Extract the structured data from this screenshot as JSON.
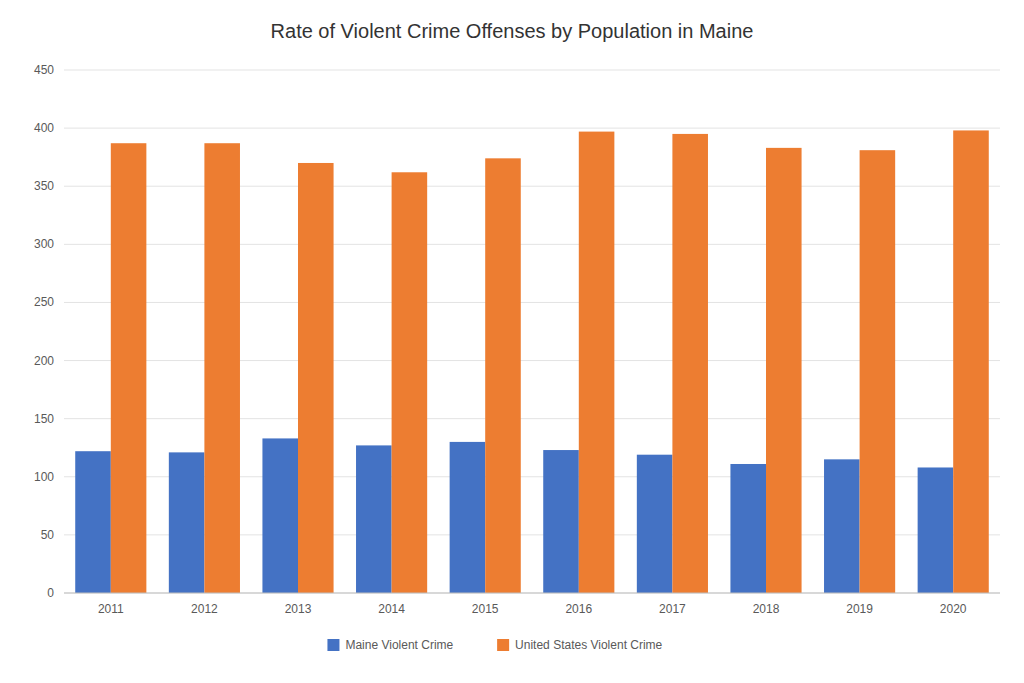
{
  "chart_data": {
    "type": "bar",
    "title": "Rate of Violent Crime Offenses by Population in Maine",
    "categories": [
      "2011",
      "2012",
      "2013",
      "2014",
      "2015",
      "2016",
      "2017",
      "2018",
      "2019",
      "2020"
    ],
    "series": [
      {
        "name": "Maine Violent Crime",
        "color": "#4472C4",
        "values": [
          122,
          121,
          133,
          127,
          130,
          123,
          119,
          111,
          115,
          108
        ]
      },
      {
        "name": "United States Violent Crime",
        "color": "#ED7D31",
        "values": [
          387,
          387,
          370,
          362,
          374,
          397,
          395,
          383,
          381,
          398
        ]
      }
    ],
    "ylim": [
      0,
      450
    ],
    "yticks": [
      0,
      50,
      100,
      150,
      200,
      250,
      300,
      350,
      400,
      450
    ],
    "grid": true,
    "legend": "bottom"
  }
}
